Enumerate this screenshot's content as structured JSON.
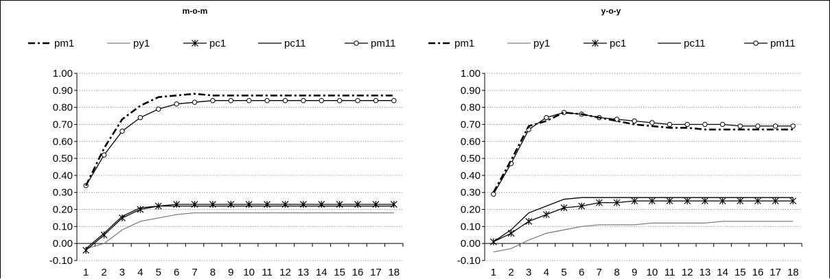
{
  "chart_data": [
    {
      "type": "line",
      "title": "m-o-m",
      "xlabel": "",
      "ylabel": "",
      "ylim": [
        -0.1,
        1.0
      ],
      "yticks": [
        "1.00",
        "0.90",
        "0.80",
        "0.70",
        "0.60",
        "0.50",
        "0.40",
        "0.30",
        "0.20",
        "0.10",
        "0.00",
        "-0.10"
      ],
      "grid": "horizontal-dotted",
      "legend_position": "top",
      "x": [
        1,
        2,
        3,
        4,
        5,
        6,
        7,
        8,
        9,
        10,
        11,
        12,
        13,
        14,
        15,
        16,
        17,
        18
      ],
      "series": [
        {
          "name": "pm1",
          "style": "dashdot",
          "values": [
            0.34,
            0.56,
            0.73,
            0.81,
            0.86,
            0.87,
            0.88,
            0.87,
            0.87,
            0.87,
            0.87,
            0.87,
            0.87,
            0.87,
            0.87,
            0.87,
            0.87,
            0.87
          ]
        },
        {
          "name": "py1",
          "style": "gray",
          "values": [
            -0.03,
            0.0,
            0.08,
            0.13,
            0.15,
            0.17,
            0.18,
            0.18,
            0.18,
            0.18,
            0.18,
            0.18,
            0.18,
            0.18,
            0.18,
            0.18,
            0.18,
            0.18
          ]
        },
        {
          "name": "pc1",
          "style": "star",
          "values": [
            -0.04,
            0.05,
            0.15,
            0.2,
            0.22,
            0.23,
            0.23,
            0.23,
            0.23,
            0.23,
            0.23,
            0.23,
            0.23,
            0.23,
            0.23,
            0.23,
            0.23,
            0.23
          ]
        },
        {
          "name": "pc11",
          "style": "solid",
          "values": [
            -0.03,
            0.06,
            0.16,
            0.21,
            0.22,
            0.22,
            0.22,
            0.22,
            0.22,
            0.22,
            0.22,
            0.22,
            0.22,
            0.22,
            0.22,
            0.22,
            0.22,
            0.22
          ]
        },
        {
          "name": "pm11",
          "style": "circle",
          "values": [
            0.34,
            0.52,
            0.66,
            0.74,
            0.79,
            0.82,
            0.83,
            0.84,
            0.84,
            0.84,
            0.84,
            0.84,
            0.84,
            0.84,
            0.84,
            0.84,
            0.84,
            0.84
          ]
        }
      ]
    },
    {
      "type": "line",
      "title": "y-o-y",
      "xlabel": "",
      "ylabel": "",
      "ylim": [
        -0.1,
        1.0
      ],
      "yticks": [
        "1.00",
        "0.90",
        "0.80",
        "0.70",
        "0.60",
        "0.50",
        "0.40",
        "0.30",
        "0.20",
        "0.10",
        "0.00",
        "-0.10"
      ],
      "grid": "horizontal-dotted",
      "legend_position": "top",
      "x": [
        1,
        2,
        3,
        4,
        5,
        6,
        7,
        8,
        9,
        10,
        11,
        12,
        13,
        14,
        15,
        16,
        17,
        18
      ],
      "series": [
        {
          "name": "pm1",
          "style": "dashdot",
          "values": [
            0.3,
            0.49,
            0.69,
            0.72,
            0.77,
            0.76,
            0.74,
            0.72,
            0.7,
            0.69,
            0.68,
            0.68,
            0.67,
            0.67,
            0.67,
            0.67,
            0.67,
            0.67
          ]
        },
        {
          "name": "py1",
          "style": "gray",
          "values": [
            -0.05,
            -0.03,
            0.02,
            0.06,
            0.08,
            0.1,
            0.11,
            0.11,
            0.11,
            0.12,
            0.12,
            0.12,
            0.12,
            0.13,
            0.13,
            0.13,
            0.13,
            0.13
          ]
        },
        {
          "name": "pc1",
          "style": "star",
          "values": [
            0.01,
            0.06,
            0.13,
            0.17,
            0.21,
            0.22,
            0.24,
            0.24,
            0.25,
            0.25,
            0.25,
            0.25,
            0.25,
            0.25,
            0.25,
            0.25,
            0.25,
            0.25
          ]
        },
        {
          "name": "pc11",
          "style": "solid",
          "values": [
            0.01,
            0.08,
            0.18,
            0.22,
            0.26,
            0.27,
            0.27,
            0.27,
            0.27,
            0.27,
            0.27,
            0.27,
            0.27,
            0.27,
            0.27,
            0.27,
            0.27,
            0.27
          ]
        },
        {
          "name": "pm11",
          "style": "circle",
          "values": [
            0.29,
            0.47,
            0.67,
            0.74,
            0.77,
            0.76,
            0.74,
            0.73,
            0.72,
            0.71,
            0.7,
            0.7,
            0.7,
            0.7,
            0.69,
            0.69,
            0.69,
            0.69
          ]
        }
      ]
    }
  ],
  "colors": {
    "line": "#000000",
    "py1": "#808080",
    "grid": "#9a9a9a"
  }
}
